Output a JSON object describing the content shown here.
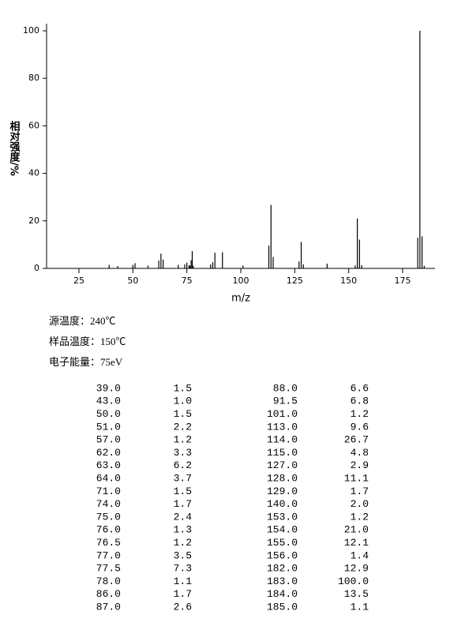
{
  "chart_data": {
    "type": "bar",
    "y_label": "相对强度/%",
    "x_label": "m/z",
    "x": [
      39.0,
      43.0,
      50.0,
      51.0,
      57.0,
      62.0,
      63.0,
      64.0,
      71.0,
      74.0,
      75.0,
      76.0,
      76.5,
      77.0,
      77.5,
      78.0,
      86.0,
      87.0,
      88.0,
      91.5,
      101.0,
      113.0,
      114.0,
      115.0,
      127.0,
      128.0,
      129.0,
      140.0,
      153.0,
      154.0,
      155.0,
      156.0,
      182.0,
      183.0,
      184.0,
      185.0
    ],
    "values": [
      1.5,
      1.0,
      1.5,
      2.2,
      1.2,
      3.3,
      6.2,
      3.7,
      1.5,
      1.7,
      2.4,
      1.3,
      1.2,
      3.5,
      7.3,
      1.1,
      1.7,
      2.6,
      6.6,
      6.8,
      1.2,
      9.6,
      26.7,
      4.8,
      2.9,
      11.1,
      1.7,
      2.0,
      1.2,
      21.0,
      12.1,
      1.4,
      12.9,
      100.0,
      13.5,
      1.1
    ],
    "color": "#000000",
    "xlim": [
      10,
      190
    ],
    "xticks": [
      25,
      50,
      75,
      100,
      125,
      150,
      175
    ],
    "ylim": [
      0,
      103
    ],
    "yticks": [
      0,
      20,
      40,
      60,
      80,
      100
    ]
  },
  "info": [
    "源温度：240℃",
    "样品温度：150℃",
    "电子能量：75eV"
  ],
  "table": {
    "rows": [
      [
        "39.0",
        "1.5",
        "88.0",
        "6.6"
      ],
      [
        "43.0",
        "1.0",
        "91.5",
        "6.8"
      ],
      [
        "50.0",
        "1.5",
        "101.0",
        "1.2"
      ],
      [
        "51.0",
        "2.2",
        "113.0",
        "9.6"
      ],
      [
        "57.0",
        "1.2",
        "114.0",
        "26.7"
      ],
      [
        "62.0",
        "3.3",
        "115.0",
        "4.8"
      ],
      [
        "63.0",
        "6.2",
        "127.0",
        "2.9"
      ],
      [
        "64.0",
        "3.7",
        "128.0",
        "11.1"
      ],
      [
        "71.0",
        "1.5",
        "129.0",
        "1.7"
      ],
      [
        "74.0",
        "1.7",
        "140.0",
        "2.0"
      ],
      [
        "75.0",
        "2.4",
        "153.0",
        "1.2"
      ],
      [
        "76.0",
        "1.3",
        "154.0",
        "21.0"
      ],
      [
        "76.5",
        "1.2",
        "155.0",
        "12.1"
      ],
      [
        "77.0",
        "3.5",
        "156.0",
        "1.4"
      ],
      [
        "77.5",
        "7.3",
        "182.0",
        "12.9"
      ],
      [
        "78.0",
        "1.1",
        "183.0",
        "100.0"
      ],
      [
        "86.0",
        "1.7",
        "184.0",
        "13.5"
      ],
      [
        "87.0",
        "2.6",
        "185.0",
        "1.1"
      ]
    ]
  }
}
